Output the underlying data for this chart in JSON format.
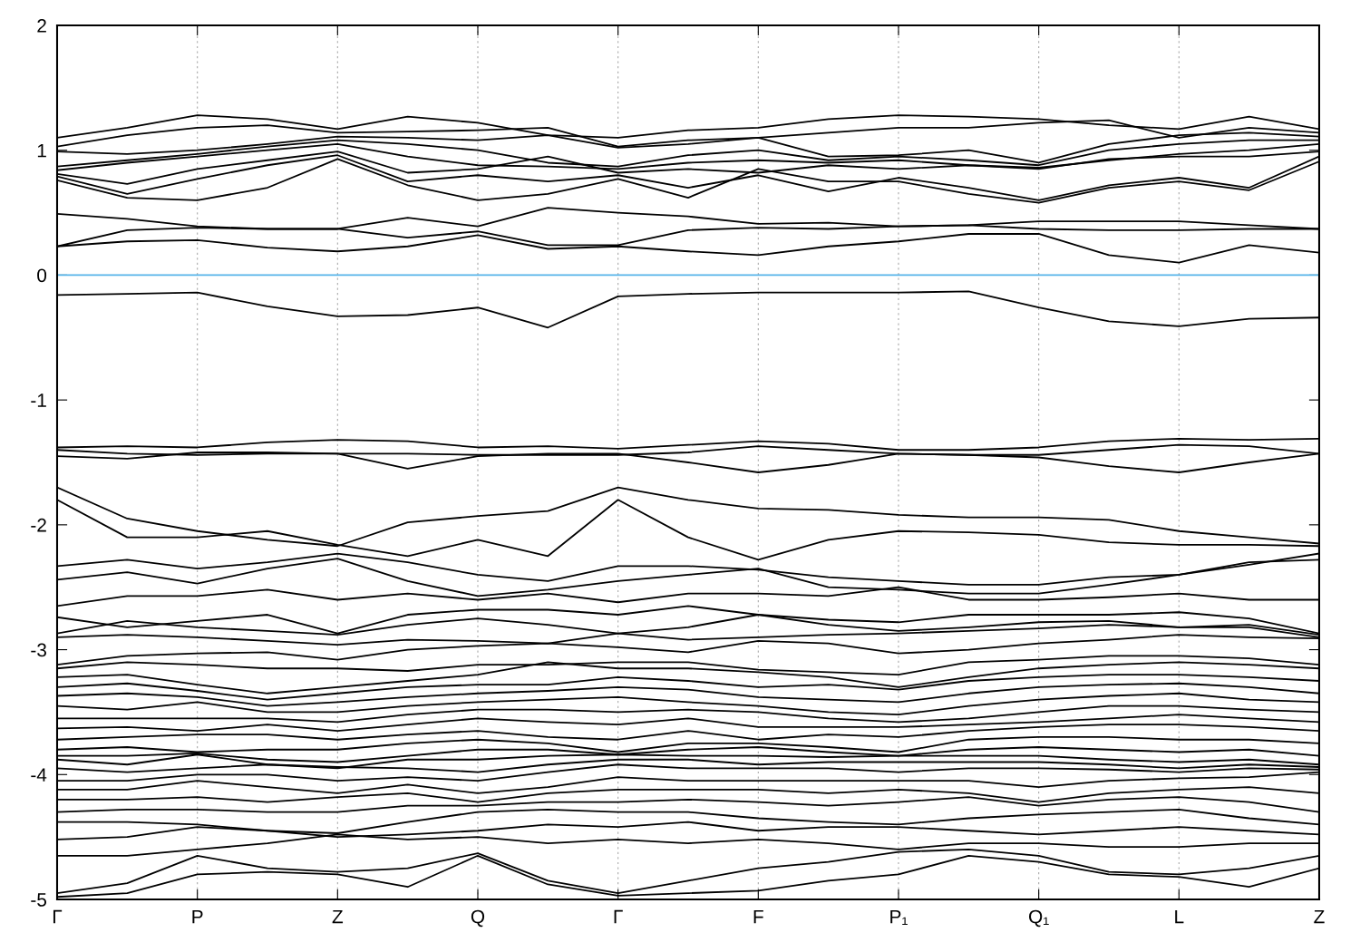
{
  "chart_data": {
    "type": "line",
    "categories": [
      "Γ",
      null,
      "P",
      null,
      "Z",
      null,
      "Q",
      null,
      "Γ",
      null,
      "F",
      null,
      "P₁",
      null,
      "Q₁",
      null,
      "L",
      null,
      "Z"
    ],
    "ylim": [
      -5,
      2
    ],
    "yticks": [
      -5,
      -4,
      -3,
      -2,
      -1,
      0,
      1,
      2
    ],
    "grid": "x",
    "legend": false,
    "marker": "none",
    "line_style": "solid",
    "ref_lines": [
      {
        "axis": "y",
        "value": 0,
        "color": "#56b4e9"
      }
    ],
    "series": [
      {
        "color": "#000000",
        "values": [
          1.1,
          1.18,
          1.28,
          1.25,
          1.17,
          1.27,
          1.22,
          1.12,
          1.1,
          1.16,
          1.18,
          1.25,
          1.28,
          1.27,
          1.25,
          1.2,
          1.17,
          1.27,
          1.17
        ]
      },
      {
        "color": "#000000",
        "values": [
          1.03,
          1.12,
          1.18,
          1.2,
          1.14,
          1.15,
          1.16,
          1.18,
          1.03,
          1.08,
          1.1,
          1.14,
          1.18,
          1.18,
          1.22,
          1.24,
          1.1,
          1.18,
          1.14
        ]
      },
      {
        "color": "#000000",
        "values": [
          0.99,
          0.97,
          1.0,
          1.05,
          1.11,
          1.1,
          1.08,
          1.12,
          1.02,
          1.05,
          1.1,
          0.95,
          0.96,
          1.0,
          0.9,
          1.05,
          1.12,
          1.14,
          1.11
        ]
      },
      {
        "color": "#000000",
        "values": [
          0.87,
          0.92,
          0.97,
          1.03,
          1.08,
          1.05,
          1.0,
          0.9,
          0.87,
          0.96,
          1.0,
          0.92,
          0.95,
          0.92,
          0.88,
          1.0,
          1.05,
          1.08,
          1.08
        ]
      },
      {
        "color": "#000000",
        "values": [
          0.84,
          0.9,
          0.95,
          1.0,
          1.05,
          0.95,
          0.88,
          0.87,
          0.85,
          0.9,
          0.92,
          0.9,
          0.92,
          0.88,
          0.86,
          0.92,
          0.97,
          1.0,
          1.05
        ]
      },
      {
        "color": "#000000",
        "values": [
          0.81,
          0.73,
          0.85,
          0.92,
          0.99,
          0.82,
          0.85,
          0.95,
          0.82,
          0.85,
          0.82,
          0.88,
          0.85,
          0.88,
          0.85,
          0.93,
          0.95,
          0.95,
          0.99
        ]
      },
      {
        "color": "#000000",
        "values": [
          0.79,
          0.65,
          0.77,
          0.88,
          0.96,
          0.75,
          0.8,
          0.75,
          0.8,
          0.7,
          0.8,
          0.67,
          0.78,
          0.7,
          0.6,
          0.72,
          0.78,
          0.7,
          0.95
        ]
      },
      {
        "color": "#000000",
        "values": [
          0.76,
          0.62,
          0.6,
          0.7,
          0.93,
          0.72,
          0.6,
          0.65,
          0.77,
          0.62,
          0.85,
          0.75,
          0.75,
          0.65,
          0.58,
          0.7,
          0.75,
          0.68,
          0.91
        ]
      },
      {
        "color": "#000000",
        "values": [
          0.49,
          0.45,
          0.39,
          0.37,
          0.37,
          0.46,
          0.39,
          0.54,
          0.5,
          0.47,
          0.41,
          0.42,
          0.39,
          0.4,
          0.43,
          0.43,
          0.43,
          0.4,
          0.37
        ]
      },
      {
        "color": "#000000",
        "values": [
          0.23,
          0.36,
          0.38,
          0.37,
          0.37,
          0.3,
          0.35,
          0.24,
          0.24,
          0.36,
          0.38,
          0.37,
          0.39,
          0.4,
          0.37,
          0.36,
          0.36,
          0.37,
          0.37
        ]
      },
      {
        "color": "#000000",
        "values": [
          0.23,
          0.27,
          0.28,
          0.22,
          0.19,
          0.23,
          0.32,
          0.21,
          0.23,
          0.19,
          0.16,
          0.23,
          0.27,
          0.33,
          0.33,
          0.16,
          0.1,
          0.24,
          0.18
        ]
      },
      {
        "color": "#000000",
        "values": [
          -0.16,
          -0.15,
          -0.14,
          -0.25,
          -0.33,
          -0.32,
          -0.26,
          -0.42,
          -0.17,
          -0.15,
          -0.14,
          -0.14,
          -0.14,
          -0.13,
          -0.26,
          -0.37,
          -0.41,
          -0.35,
          -0.34
        ]
      },
      {
        "color": "#000000",
        "values": [
          -1.38,
          -1.37,
          -1.38,
          -1.34,
          -1.32,
          -1.33,
          -1.38,
          -1.37,
          -1.39,
          -1.36,
          -1.33,
          -1.35,
          -1.4,
          -1.4,
          -1.38,
          -1.33,
          -1.31,
          -1.32,
          -1.31
        ]
      },
      {
        "color": "#000000",
        "values": [
          -1.4,
          -1.43,
          -1.44,
          -1.43,
          -1.43,
          -1.43,
          -1.44,
          -1.44,
          -1.44,
          -1.42,
          -1.37,
          -1.4,
          -1.43,
          -1.44,
          -1.44,
          -1.4,
          -1.36,
          -1.37,
          -1.43
        ]
      },
      {
        "color": "#000000",
        "values": [
          -1.45,
          -1.47,
          -1.42,
          -1.42,
          -1.43,
          -1.55,
          -1.45,
          -1.43,
          -1.43,
          -1.5,
          -1.58,
          -1.52,
          -1.43,
          -1.44,
          -1.46,
          -1.53,
          -1.58,
          -1.5,
          -1.43
        ]
      },
      {
        "color": "#000000",
        "values": [
          -1.7,
          -1.95,
          -2.05,
          -2.12,
          -2.17,
          -1.98,
          -1.93,
          -1.89,
          -1.7,
          -1.8,
          -1.87,
          -1.88,
          -1.92,
          -1.94,
          -1.94,
          -1.96,
          -2.05,
          -2.1,
          -2.15
        ]
      },
      {
        "color": "#000000",
        "values": [
          -1.8,
          -2.1,
          -2.1,
          -2.05,
          -2.16,
          -2.25,
          -2.12,
          -2.25,
          -1.8,
          -2.1,
          -2.28,
          -2.12,
          -2.05,
          -2.06,
          -2.08,
          -2.14,
          -2.16,
          -2.16,
          -2.17
        ]
      },
      {
        "color": "#000000",
        "values": [
          -2.33,
          -2.28,
          -2.35,
          -2.3,
          -2.23,
          -2.3,
          -2.4,
          -2.45,
          -2.33,
          -2.33,
          -2.36,
          -2.42,
          -2.45,
          -2.48,
          -2.48,
          -2.42,
          -2.4,
          -2.32,
          -2.23
        ]
      },
      {
        "color": "#000000",
        "values": [
          -2.44,
          -2.38,
          -2.47,
          -2.35,
          -2.27,
          -2.45,
          -2.57,
          -2.52,
          -2.45,
          -2.4,
          -2.35,
          -2.5,
          -2.52,
          -2.55,
          -2.55,
          -2.48,
          -2.4,
          -2.3,
          -2.28
        ]
      },
      {
        "color": "#000000",
        "values": [
          -2.65,
          -2.57,
          -2.57,
          -2.52,
          -2.6,
          -2.55,
          -2.6,
          -2.55,
          -2.62,
          -2.55,
          -2.55,
          -2.57,
          -2.5,
          -2.6,
          -2.6,
          -2.58,
          -2.55,
          -2.6,
          -2.6
        ]
      },
      {
        "color": "#000000",
        "values": [
          -2.74,
          -2.82,
          -2.77,
          -2.72,
          -2.87,
          -2.72,
          -2.68,
          -2.68,
          -2.72,
          -2.65,
          -2.72,
          -2.76,
          -2.78,
          -2.72,
          -2.72,
          -2.72,
          -2.7,
          -2.75,
          -2.87
        ]
      },
      {
        "color": "#000000",
        "values": [
          -2.87,
          -2.77,
          -2.82,
          -2.85,
          -2.88,
          -2.8,
          -2.75,
          -2.8,
          -2.87,
          -2.82,
          -2.72,
          -2.8,
          -2.85,
          -2.82,
          -2.78,
          -2.77,
          -2.82,
          -2.8,
          -2.88
        ]
      },
      {
        "color": "#000000",
        "values": [
          -2.9,
          -2.88,
          -2.9,
          -2.93,
          -2.96,
          -2.92,
          -2.93,
          -2.95,
          -2.87,
          -2.92,
          -2.9,
          -2.88,
          -2.87,
          -2.85,
          -2.83,
          -2.8,
          -2.82,
          -2.82,
          -2.9
        ]
      },
      {
        "color": "#000000",
        "values": [
          -3.12,
          -3.05,
          -3.03,
          -3.02,
          -3.08,
          -3.0,
          -2.97,
          -2.95,
          -2.98,
          -3.02,
          -2.93,
          -2.95,
          -3.03,
          -3.0,
          -2.95,
          -2.92,
          -2.88,
          -2.9,
          -2.91
        ]
      },
      {
        "color": "#000000",
        "values": [
          -3.15,
          -3.1,
          -3.12,
          -3.15,
          -3.15,
          -3.17,
          -3.12,
          -3.12,
          -3.1,
          -3.1,
          -3.16,
          -3.18,
          -3.2,
          -3.1,
          -3.08,
          -3.05,
          -3.05,
          -3.07,
          -3.12
        ]
      },
      {
        "color": "#000000",
        "values": [
          -3.22,
          -3.2,
          -3.28,
          -3.35,
          -3.3,
          -3.25,
          -3.2,
          -3.1,
          -3.15,
          -3.15,
          -3.18,
          -3.22,
          -3.3,
          -3.22,
          -3.15,
          -3.12,
          -3.1,
          -3.12,
          -3.15
        ]
      },
      {
        "color": "#000000",
        "values": [
          -3.3,
          -3.27,
          -3.33,
          -3.4,
          -3.35,
          -3.3,
          -3.28,
          -3.28,
          -3.22,
          -3.25,
          -3.3,
          -3.28,
          -3.32,
          -3.25,
          -3.22,
          -3.2,
          -3.2,
          -3.22,
          -3.25
        ]
      },
      {
        "color": "#000000",
        "values": [
          -3.37,
          -3.35,
          -3.38,
          -3.45,
          -3.42,
          -3.38,
          -3.35,
          -3.33,
          -3.3,
          -3.32,
          -3.38,
          -3.4,
          -3.42,
          -3.35,
          -3.3,
          -3.28,
          -3.27,
          -3.3,
          -3.35
        ]
      },
      {
        "color": "#000000",
        "values": [
          -3.45,
          -3.48,
          -3.42,
          -3.5,
          -3.5,
          -3.45,
          -3.42,
          -3.4,
          -3.38,
          -3.42,
          -3.45,
          -3.5,
          -3.52,
          -3.45,
          -3.4,
          -3.37,
          -3.35,
          -3.4,
          -3.42
        ]
      },
      {
        "color": "#000000",
        "values": [
          -3.55,
          -3.55,
          -3.55,
          -3.55,
          -3.58,
          -3.52,
          -3.48,
          -3.48,
          -3.5,
          -3.48,
          -3.5,
          -3.55,
          -3.58,
          -3.55,
          -3.5,
          -3.45,
          -3.45,
          -3.48,
          -3.5
        ]
      },
      {
        "color": "#000000",
        "values": [
          -3.63,
          -3.62,
          -3.65,
          -3.6,
          -3.65,
          -3.6,
          -3.55,
          -3.58,
          -3.6,
          -3.55,
          -3.62,
          -3.62,
          -3.62,
          -3.6,
          -3.58,
          -3.55,
          -3.52,
          -3.55,
          -3.58
        ]
      },
      {
        "color": "#000000",
        "values": [
          -3.72,
          -3.7,
          -3.68,
          -3.68,
          -3.72,
          -3.68,
          -3.65,
          -3.7,
          -3.72,
          -3.65,
          -3.72,
          -3.68,
          -3.7,
          -3.65,
          -3.62,
          -3.6,
          -3.6,
          -3.62,
          -3.65
        ]
      },
      {
        "color": "#000000",
        "values": [
          -3.8,
          -3.78,
          -3.82,
          -3.8,
          -3.8,
          -3.75,
          -3.72,
          -3.75,
          -3.82,
          -3.75,
          -3.75,
          -3.78,
          -3.82,
          -3.72,
          -3.7,
          -3.7,
          -3.72,
          -3.72,
          -3.75
        ]
      },
      {
        "color": "#000000",
        "values": [
          -3.85,
          -3.85,
          -3.83,
          -3.88,
          -3.9,
          -3.85,
          -3.8,
          -3.8,
          -3.84,
          -3.8,
          -3.78,
          -3.82,
          -3.85,
          -3.8,
          -3.78,
          -3.8,
          -3.82,
          -3.8,
          -3.85
        ]
      },
      {
        "color": "#000000",
        "values": [
          -3.88,
          -3.92,
          -3.84,
          -3.92,
          -3.95,
          -3.88,
          -3.88,
          -3.85,
          -3.84,
          -3.85,
          -3.85,
          -3.86,
          -3.85,
          -3.85,
          -3.85,
          -3.88,
          -3.9,
          -3.88,
          -3.92
        ]
      },
      {
        "color": "#000000",
        "values": [
          -3.95,
          -3.98,
          -3.95,
          -3.92,
          -3.94,
          -3.95,
          -3.98,
          -3.92,
          -3.88,
          -3.88,
          -3.92,
          -3.9,
          -3.9,
          -3.9,
          -3.9,
          -3.92,
          -3.95,
          -3.92,
          -3.94
        ]
      },
      {
        "color": "#000000",
        "values": [
          -4.05,
          -4.05,
          -4.0,
          -4.0,
          -4.05,
          -4.02,
          -4.05,
          -3.98,
          -3.92,
          -3.95,
          -3.95,
          -3.95,
          -3.98,
          -3.95,
          -3.95,
          -3.96,
          -3.98,
          -3.95,
          -3.96
        ]
      },
      {
        "color": "#000000",
        "values": [
          -4.12,
          -4.12,
          -4.05,
          -4.1,
          -4.15,
          -4.08,
          -4.15,
          -4.1,
          -4.02,
          -4.05,
          -4.05,
          -4.05,
          -4.05,
          -4.05,
          -4.1,
          -4.05,
          -4.03,
          -4.02,
          -3.98
        ]
      },
      {
        "color": "#000000",
        "values": [
          -4.2,
          -4.2,
          -4.18,
          -4.22,
          -4.18,
          -4.15,
          -4.22,
          -4.15,
          -4.12,
          -4.12,
          -4.12,
          -4.15,
          -4.12,
          -4.15,
          -4.22,
          -4.15,
          -4.12,
          -4.1,
          -4.15
        ]
      },
      {
        "color": "#000000",
        "values": [
          -4.3,
          -4.28,
          -4.28,
          -4.3,
          -4.3,
          -4.25,
          -4.25,
          -4.22,
          -4.22,
          -4.2,
          -4.22,
          -4.25,
          -4.22,
          -4.18,
          -4.25,
          -4.2,
          -4.18,
          -4.22,
          -4.3
        ]
      },
      {
        "color": "#000000",
        "values": [
          -4.38,
          -4.38,
          -4.4,
          -4.45,
          -4.47,
          -4.38,
          -4.3,
          -4.28,
          -4.3,
          -4.3,
          -4.35,
          -4.38,
          -4.4,
          -4.35,
          -4.32,
          -4.3,
          -4.28,
          -4.35,
          -4.4
        ]
      },
      {
        "color": "#000000",
        "values": [
          -4.52,
          -4.5,
          -4.42,
          -4.45,
          -4.5,
          -4.48,
          -4.45,
          -4.4,
          -4.42,
          -4.38,
          -4.45,
          -4.42,
          -4.42,
          -4.45,
          -4.48,
          -4.45,
          -4.42,
          -4.45,
          -4.48
        ]
      },
      {
        "color": "#000000",
        "values": [
          -4.65,
          -4.65,
          -4.6,
          -4.55,
          -4.48,
          -4.52,
          -4.5,
          -4.55,
          -4.52,
          -4.55,
          -4.52,
          -4.55,
          -4.6,
          -4.55,
          -4.55,
          -4.58,
          -4.58,
          -4.55,
          -4.55
        ]
      },
      {
        "color": "#000000",
        "values": [
          -4.95,
          -4.87,
          -4.65,
          -4.75,
          -4.78,
          -4.75,
          -4.63,
          -4.85,
          -4.95,
          -4.85,
          -4.75,
          -4.7,
          -4.62,
          -4.6,
          -4.65,
          -4.78,
          -4.8,
          -4.75,
          -4.65
        ]
      },
      {
        "color": "#000000",
        "values": [
          -4.98,
          -4.95,
          -4.8,
          -4.78,
          -4.8,
          -4.9,
          -4.65,
          -4.88,
          -4.97,
          -4.95,
          -4.93,
          -4.85,
          -4.8,
          -4.65,
          -4.7,
          -4.8,
          -4.82,
          -4.9,
          -4.75
        ]
      }
    ]
  }
}
